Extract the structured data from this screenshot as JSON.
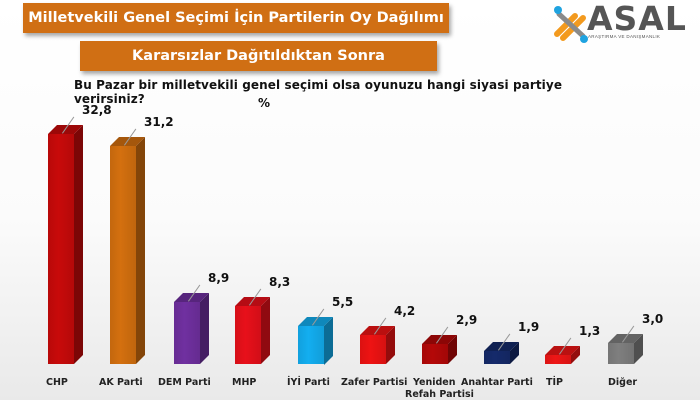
{
  "header": {
    "title": "Milletvekili Genel Seçimi İçin Partilerin Oy Dağılımı",
    "subtitle": "Kararsızlar Dağıtıldıktan Sonra",
    "question": "Bu Pazar bir milletvekili genel seçimi olsa oyunuzu hangi siyasi partiye verirsiniz?",
    "unit": "%"
  },
  "logo": {
    "name": "ASAL",
    "tagline": "ARAŞTIRMA VE DANIŞMANLIK",
    "colors": [
      "#f39a1e",
      "#1fa3e0",
      "#555555"
    ]
  },
  "chart_data": {
    "type": "bar",
    "title": "Milletvekili Genel Seçimi İçin Partilerin Oy Dağılımı",
    "subtitle": "Kararsızlar Dağıtıldıktan Sonra",
    "xlabel": "",
    "ylabel": "%",
    "ylim": [
      0,
      35
    ],
    "grid": false,
    "legend": "none",
    "categories": [
      "CHP",
      "AK Parti",
      "DEM Parti",
      "MHP",
      "İYİ Parti",
      "Zafer Partisi",
      "Yeniden Refah Partisi",
      "Anahtar Parti",
      "TİP",
      "Diğer"
    ],
    "values": [
      32.8,
      31.2,
      8.9,
      8.3,
      5.5,
      4.2,
      2.9,
      1.9,
      1.3,
      3.0
    ],
    "value_labels": [
      "32,8",
      "31,2",
      "8,9",
      "8,3",
      "5,5",
      "4,2",
      "2,9",
      "1,9",
      "1,3",
      "3,0"
    ],
    "colors": [
      "#c80a0a",
      "#d4700f",
      "#7030a0",
      "#e8101a",
      "#13aef0",
      "#ee1313",
      "#b40808",
      "#152a6b",
      "#ee1616",
      "#7f7f7f"
    ]
  }
}
